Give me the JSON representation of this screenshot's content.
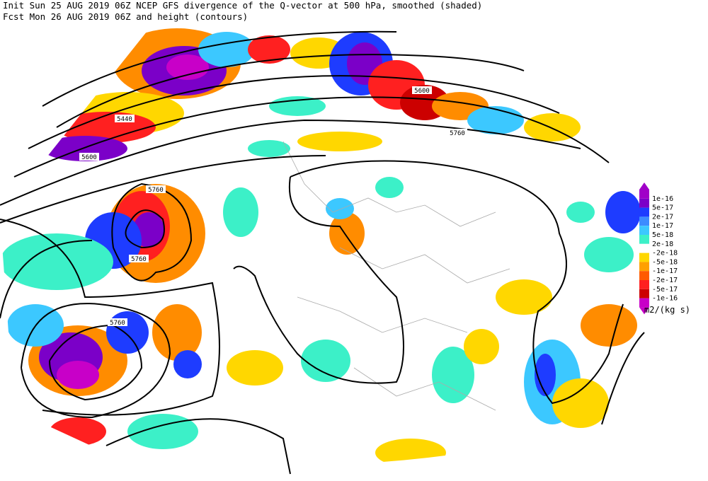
{
  "header": {
    "line1": "Init  Sun 25 AUG 2019 06Z  NCEP GFS divergence of the Q-vector at 500 hPa, smoothed (shaded)",
    "line2": "Fcst Mon 26 AUG 2019 06Z  and height (contours)"
  },
  "contour_labels": [
    "5440",
    "5600",
    "5760",
    "5760",
    "5760",
    "5600",
    "5760"
  ],
  "colorbar": {
    "labels": [
      "1e-16",
      "5e-17",
      "2e-17",
      "1e-17",
      "5e-18",
      "2e-18",
      "-2e-18",
      "-5e-18",
      "-1e-17",
      "-2e-17",
      "-5e-17",
      "-1e-16"
    ],
    "units": "m2/(kg s)"
  }
}
